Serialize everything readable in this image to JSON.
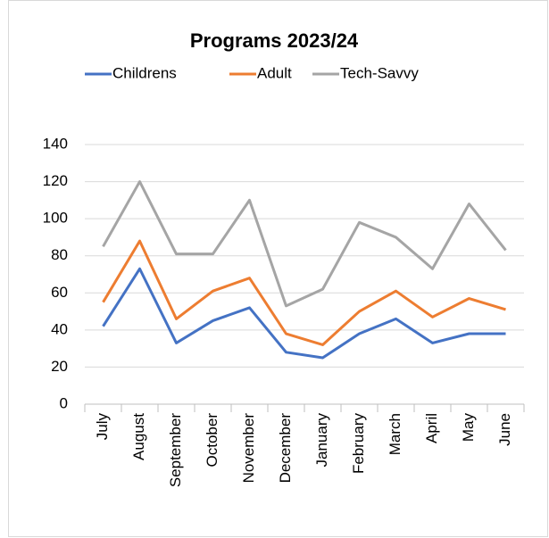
{
  "chart_data": {
    "type": "line",
    "title": "Programs 2023/24",
    "categories": [
      "July",
      "August",
      "September",
      "October",
      "November",
      "December",
      "January",
      "February",
      "March",
      "April",
      "May",
      "June"
    ],
    "series": [
      {
        "name": "Childrens",
        "color": "#4472c4",
        "values": [
          42,
          73,
          33,
          45,
          52,
          28,
          25,
          38,
          46,
          33,
          38,
          38
        ]
      },
      {
        "name": "Adult",
        "color": "#ed7d31",
        "values": [
          55,
          88,
          46,
          61,
          68,
          38,
          32,
          50,
          61,
          47,
          57,
          51
        ]
      },
      {
        "name": "Tech-Savvy",
        "color": "#a5a5a5",
        "values": [
          85,
          120,
          81,
          81,
          110,
          53,
          62,
          98,
          90,
          73,
          108,
          83
        ]
      }
    ],
    "ylim": [
      0,
      140
    ],
    "yticks": [
      0,
      20,
      40,
      60,
      80,
      100,
      120,
      140
    ],
    "grid": true,
    "legend": "top"
  }
}
